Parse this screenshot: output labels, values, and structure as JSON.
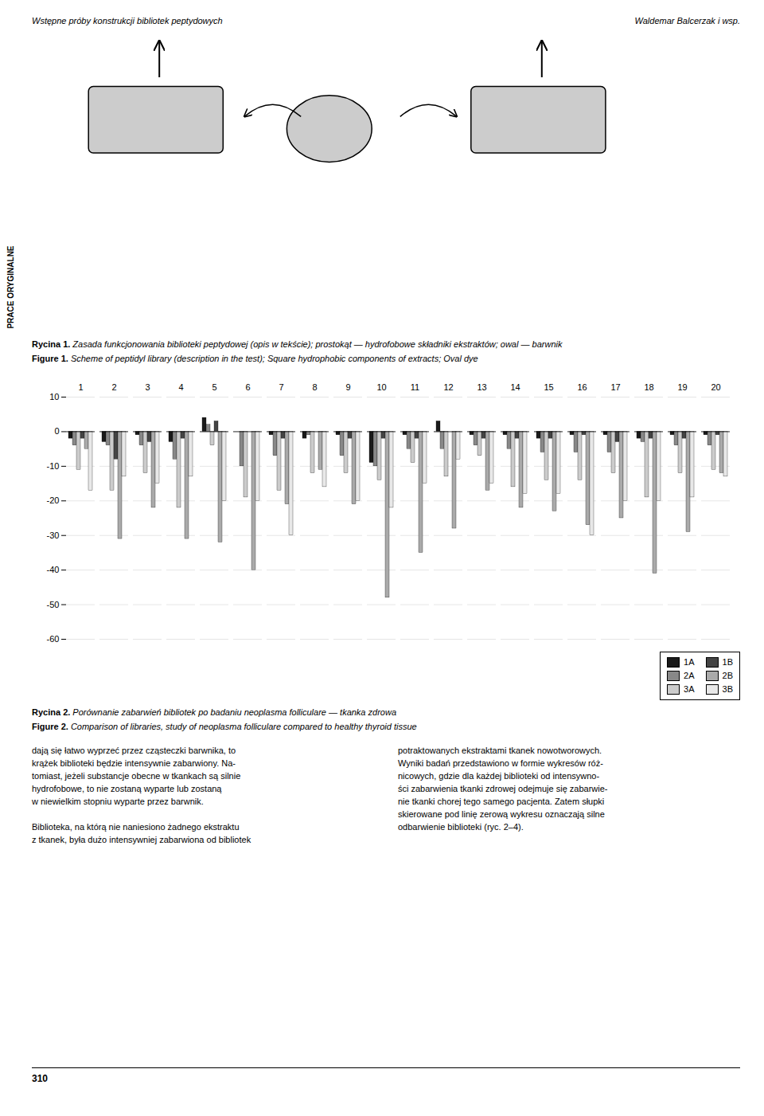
{
  "chart_data": {
    "type": "bar",
    "title": "Rycina 2. Porównanie zabarwień bibliotek po badaniu neoplasma folliculare — tkanka zdrowa",
    "subtitle": "Figure 2. Comparison of libraries, study of neoplasma folliculare compared to healthy thyroid tissue",
    "annotations": [
      "Wstępne próby konstrukcji bibliotek peptydowych",
      "Waldemar Balcerzak i wsp.",
      "PRACE ORYGINALNE",
      "Rycina 1. Zasada funkcjonowania biblioteki peptydowej (opis w tekście); prostokąt — hydrofobowe składniki ekstraktów; owal — barwnik",
      "Figure 1. Scheme of peptidyl library (description in the test); Square hydrophobic components of extracts; Oval dye",
      "dają się łatwo wyprzeć przez cząsteczki barwnika, to\nkrążek biblioteki będzie intensywnie zabarwiony. Na-\ntomiast, jeżeli substancje obecne w tkankach są silnie\nhydrofobowe, to nie zostaną wyparte lub zostaną\nw niewielkim stopniu wyparte przez barwnik.\n\nBiblioteka, na którą nie naniesiono żadnego ekstraktu\nz tkanek, była dużo intensywniej zabarwiona od bibliotek",
      "potraktowanych ekstraktami tkanek nowotworowych.\nWyniki badań przedstawiono w formie wykresów róż-\nnicowych, gdzie dla każdej biblioteki od intensywno-\nści zabarwienia tkanki zdrowej odejmuje się zabarwie-\nnie tkanki chorej tego samego pacjenta. Zatem słupki\nskierowane pod linię zerową wykresu oznaczają silne\nodbarwienie biblioteki (ryc. 2–4).",
      "310"
    ],
    "categories": [
      1,
      2,
      3,
      4,
      5,
      6,
      7,
      8,
      9,
      10,
      11,
      12,
      13,
      14,
      15,
      16,
      17,
      18,
      19,
      20
    ],
    "series": [
      {
        "name": "1A",
        "color": "#1a1a1a",
        "values": [
          -2,
          -3,
          -1,
          -3,
          4,
          0,
          -1,
          -2,
          -1,
          -9,
          -1,
          3,
          -1,
          -1,
          -2,
          -1,
          -1,
          -2,
          -1,
          -1
        ]
      },
      {
        "name": "2A",
        "color": "#888888",
        "values": [
          -4,
          -4,
          -4,
          -8,
          2,
          -10,
          -7,
          -1,
          -7,
          -10,
          -5,
          -5,
          -4,
          -5,
          -6,
          -6,
          -6,
          -3,
          -4,
          -4
        ]
      },
      {
        "name": "3A",
        "color": "#cccccc",
        "values": [
          -11,
          -17,
          -12,
          -22,
          -4,
          -19,
          -17,
          -12,
          -12,
          -14,
          -9,
          -13,
          -7,
          -16,
          -14,
          -14,
          -12,
          -19,
          -12,
          -11
        ]
      },
      {
        "name": "1B",
        "color": "#444444",
        "values": [
          -2,
          -8,
          -3,
          -2,
          3,
          0,
          -2,
          0,
          -2,
          -2,
          -2,
          0,
          -2,
          -2,
          -2,
          -1,
          -3,
          -2,
          -2,
          -1
        ]
      },
      {
        "name": "2B",
        "color": "#aaaaaa",
        "values": [
          -5,
          -31,
          -22,
          -31,
          -32,
          -40,
          -21,
          -11,
          -21,
          -48,
          -35,
          -28,
          -17,
          -22,
          -23,
          -27,
          -25,
          -41,
          -29,
          -12
        ]
      },
      {
        "name": "3B",
        "color": "#e8e8e8",
        "values": [
          -17,
          -13,
          -15,
          -13,
          -20,
          -20,
          -30,
          -16,
          -20,
          -22,
          -15,
          -8,
          -15,
          -18,
          -18,
          -30,
          -20,
          -20,
          -19,
          -13
        ]
      }
    ],
    "ylim": [
      -60,
      10
    ],
    "yticks": [
      10,
      0,
      -10,
      -20,
      -30,
      -40,
      -50,
      -60
    ],
    "grid": true,
    "legend": "lower right"
  }
}
